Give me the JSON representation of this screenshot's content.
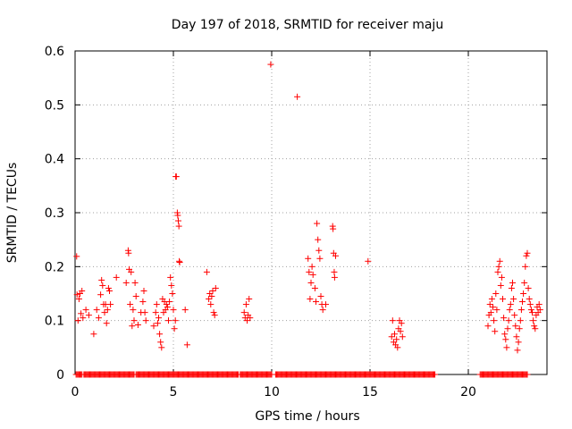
{
  "chart_data": {
    "type": "scatter",
    "title": "Day 197 of 2018, SRMTID for receiver maju",
    "xlabel": "GPS time / hours",
    "ylabel": "SRMTID / TECUs",
    "xlim": [
      0,
      24
    ],
    "ylim": [
      0,
      0.6
    ],
    "xticks": [
      0,
      5,
      10,
      15,
      20
    ],
    "yticks": [
      0,
      0.1,
      0.2,
      0.3,
      0.4,
      0.5,
      0.6
    ],
    "xtick_labels": [
      "0",
      "5",
      "10",
      "15",
      "20"
    ],
    "ytick_labels": [
      "0",
      "0.1",
      "0.2",
      "0.3",
      "0.4",
      "0.5",
      "0.6"
    ],
    "grid": true,
    "marker": "+",
    "marker_color": "#ff0000",
    "zero_level_segments": [
      [
        0.05,
        0.35
      ],
      [
        0.45,
        3.0
      ],
      [
        3.1,
        8.3
      ],
      [
        8.4,
        10.0
      ],
      [
        10.2,
        18.3
      ],
      [
        20.6,
        23.0
      ]
    ],
    "series": [
      {
        "name": "SRMTID",
        "points": [
          [
            0.08,
            0.219
          ],
          [
            0.1,
            0.148
          ],
          [
            0.15,
            0.1
          ],
          [
            0.2,
            0.14
          ],
          [
            0.25,
            0.15
          ],
          [
            0.3,
            0.113
          ],
          [
            0.35,
            0.155
          ],
          [
            0.4,
            0.105
          ],
          [
            0.55,
            0.12
          ],
          [
            0.7,
            0.11
          ],
          [
            0.95,
            0.075
          ],
          [
            1.1,
            0.12
          ],
          [
            1.2,
            0.105
          ],
          [
            1.3,
            0.148
          ],
          [
            1.35,
            0.175
          ],
          [
            1.4,
            0.165
          ],
          [
            1.45,
            0.13
          ],
          [
            1.5,
            0.115
          ],
          [
            1.55,
            0.13
          ],
          [
            1.6,
            0.095
          ],
          [
            1.65,
            0.12
          ],
          [
            1.7,
            0.16
          ],
          [
            1.75,
            0.155
          ],
          [
            1.8,
            0.13
          ],
          [
            2.1,
            0.18
          ],
          [
            2.6,
            0.17
          ],
          [
            2.7,
            0.23
          ],
          [
            2.72,
            0.225
          ],
          [
            2.75,
            0.195
          ],
          [
            2.8,
            0.13
          ],
          [
            2.85,
            0.19
          ],
          [
            2.9,
            0.09
          ],
          [
            2.95,
            0.12
          ],
          [
            3.0,
            0.1
          ],
          [
            3.05,
            0.17
          ],
          [
            3.1,
            0.145
          ],
          [
            3.2,
            0.092
          ],
          [
            3.35,
            0.115
          ],
          [
            3.45,
            0.135
          ],
          [
            3.5,
            0.155
          ],
          [
            3.55,
            0.115
          ],
          [
            3.6,
            0.1
          ],
          [
            4.0,
            0.09
          ],
          [
            4.1,
            0.115
          ],
          [
            4.15,
            0.13
          ],
          [
            4.2,
            0.095
          ],
          [
            4.25,
            0.105
          ],
          [
            4.3,
            0.075
          ],
          [
            4.35,
            0.06
          ],
          [
            4.4,
            0.05
          ],
          [
            4.45,
            0.14
          ],
          [
            4.5,
            0.115
          ],
          [
            4.55,
            0.135
          ],
          [
            4.6,
            0.12
          ],
          [
            4.65,
            0.13
          ],
          [
            4.7,
            0.125
          ],
          [
            4.75,
            0.1
          ],
          [
            4.8,
            0.135
          ],
          [
            4.85,
            0.18
          ],
          [
            4.9,
            0.165
          ],
          [
            4.95,
            0.15
          ],
          [
            5.0,
            0.12
          ],
          [
            5.05,
            0.085
          ],
          [
            5.1,
            0.1
          ],
          [
            5.12,
            0.367
          ],
          [
            5.15,
            0.367
          ],
          [
            5.2,
            0.3
          ],
          [
            5.22,
            0.295
          ],
          [
            5.25,
            0.285
          ],
          [
            5.28,
            0.275
          ],
          [
            5.3,
            0.21
          ],
          [
            5.32,
            0.208
          ],
          [
            5.6,
            0.12
          ],
          [
            5.7,
            0.055
          ],
          [
            6.7,
            0.19
          ],
          [
            6.8,
            0.14
          ],
          [
            6.85,
            0.15
          ],
          [
            6.9,
            0.13
          ],
          [
            6.95,
            0.145
          ],
          [
            7.0,
            0.155
          ],
          [
            7.05,
            0.115
          ],
          [
            7.1,
            0.11
          ],
          [
            7.15,
            0.16
          ],
          [
            8.6,
            0.115
          ],
          [
            8.65,
            0.105
          ],
          [
            8.7,
            0.13
          ],
          [
            8.75,
            0.1
          ],
          [
            8.8,
            0.11
          ],
          [
            8.85,
            0.14
          ],
          [
            8.9,
            0.105
          ],
          [
            9.95,
            0.575
          ],
          [
            11.3,
            0.515
          ],
          [
            11.85,
            0.215
          ],
          [
            11.9,
            0.19
          ],
          [
            11.95,
            0.14
          ],
          [
            12.0,
            0.17
          ],
          [
            12.05,
            0.2
          ],
          [
            12.1,
            0.185
          ],
          [
            12.2,
            0.16
          ],
          [
            12.25,
            0.135
          ],
          [
            12.3,
            0.28
          ],
          [
            12.35,
            0.25
          ],
          [
            12.4,
            0.23
          ],
          [
            12.45,
            0.215
          ],
          [
            12.5,
            0.145
          ],
          [
            12.55,
            0.13
          ],
          [
            12.6,
            0.12
          ],
          [
            12.75,
            0.13
          ],
          [
            13.1,
            0.275
          ],
          [
            13.12,
            0.27
          ],
          [
            13.15,
            0.225
          ],
          [
            13.18,
            0.19
          ],
          [
            13.2,
            0.18
          ],
          [
            13.25,
            0.22
          ],
          [
            14.9,
            0.21
          ],
          [
            16.1,
            0.07
          ],
          [
            16.15,
            0.1
          ],
          [
            16.2,
            0.06
          ],
          [
            16.25,
            0.075
          ],
          [
            16.3,
            0.055
          ],
          [
            16.35,
            0.065
          ],
          [
            16.4,
            0.05
          ],
          [
            16.45,
            0.085
          ],
          [
            16.5,
            0.1
          ],
          [
            16.55,
            0.08
          ],
          [
            16.6,
            0.095
          ],
          [
            16.65,
            0.07
          ],
          [
            21.0,
            0.09
          ],
          [
            21.05,
            0.11
          ],
          [
            21.1,
            0.13
          ],
          [
            21.15,
            0.115
          ],
          [
            21.2,
            0.14
          ],
          [
            21.25,
            0.125
          ],
          [
            21.3,
            0.1
          ],
          [
            21.35,
            0.08
          ],
          [
            21.4,
            0.15
          ],
          [
            21.45,
            0.12
          ],
          [
            21.5,
            0.19
          ],
          [
            21.55,
            0.2
          ],
          [
            21.6,
            0.21
          ],
          [
            21.65,
            0.165
          ],
          [
            21.7,
            0.18
          ],
          [
            21.75,
            0.14
          ],
          [
            21.8,
            0.105
          ],
          [
            21.85,
            0.075
          ],
          [
            21.9,
            0.065
          ],
          [
            21.95,
            0.05
          ],
          [
            22.0,
            0.085
          ],
          [
            22.05,
            0.1
          ],
          [
            22.1,
            0.12
          ],
          [
            22.15,
            0.13
          ],
          [
            22.2,
            0.16
          ],
          [
            22.25,
            0.17
          ],
          [
            22.3,
            0.14
          ],
          [
            22.35,
            0.11
          ],
          [
            22.4,
            0.09
          ],
          [
            22.45,
            0.07
          ],
          [
            22.5,
            0.045
          ],
          [
            22.55,
            0.06
          ],
          [
            22.6,
            0.085
          ],
          [
            22.65,
            0.1
          ],
          [
            22.7,
            0.12
          ],
          [
            22.75,
            0.135
          ],
          [
            22.8,
            0.15
          ],
          [
            22.85,
            0.17
          ],
          [
            22.9,
            0.2
          ],
          [
            22.95,
            0.22
          ],
          [
            23.0,
            0.225
          ],
          [
            23.05,
            0.16
          ],
          [
            23.1,
            0.14
          ],
          [
            23.15,
            0.13
          ],
          [
            23.2,
            0.12
          ],
          [
            23.25,
            0.115
          ],
          [
            23.3,
            0.1
          ],
          [
            23.35,
            0.09
          ],
          [
            23.4,
            0.085
          ],
          [
            23.45,
            0.11
          ],
          [
            23.5,
            0.125
          ],
          [
            23.55,
            0.115
          ],
          [
            23.6,
            0.13
          ],
          [
            23.65,
            0.12
          ]
        ]
      }
    ]
  }
}
